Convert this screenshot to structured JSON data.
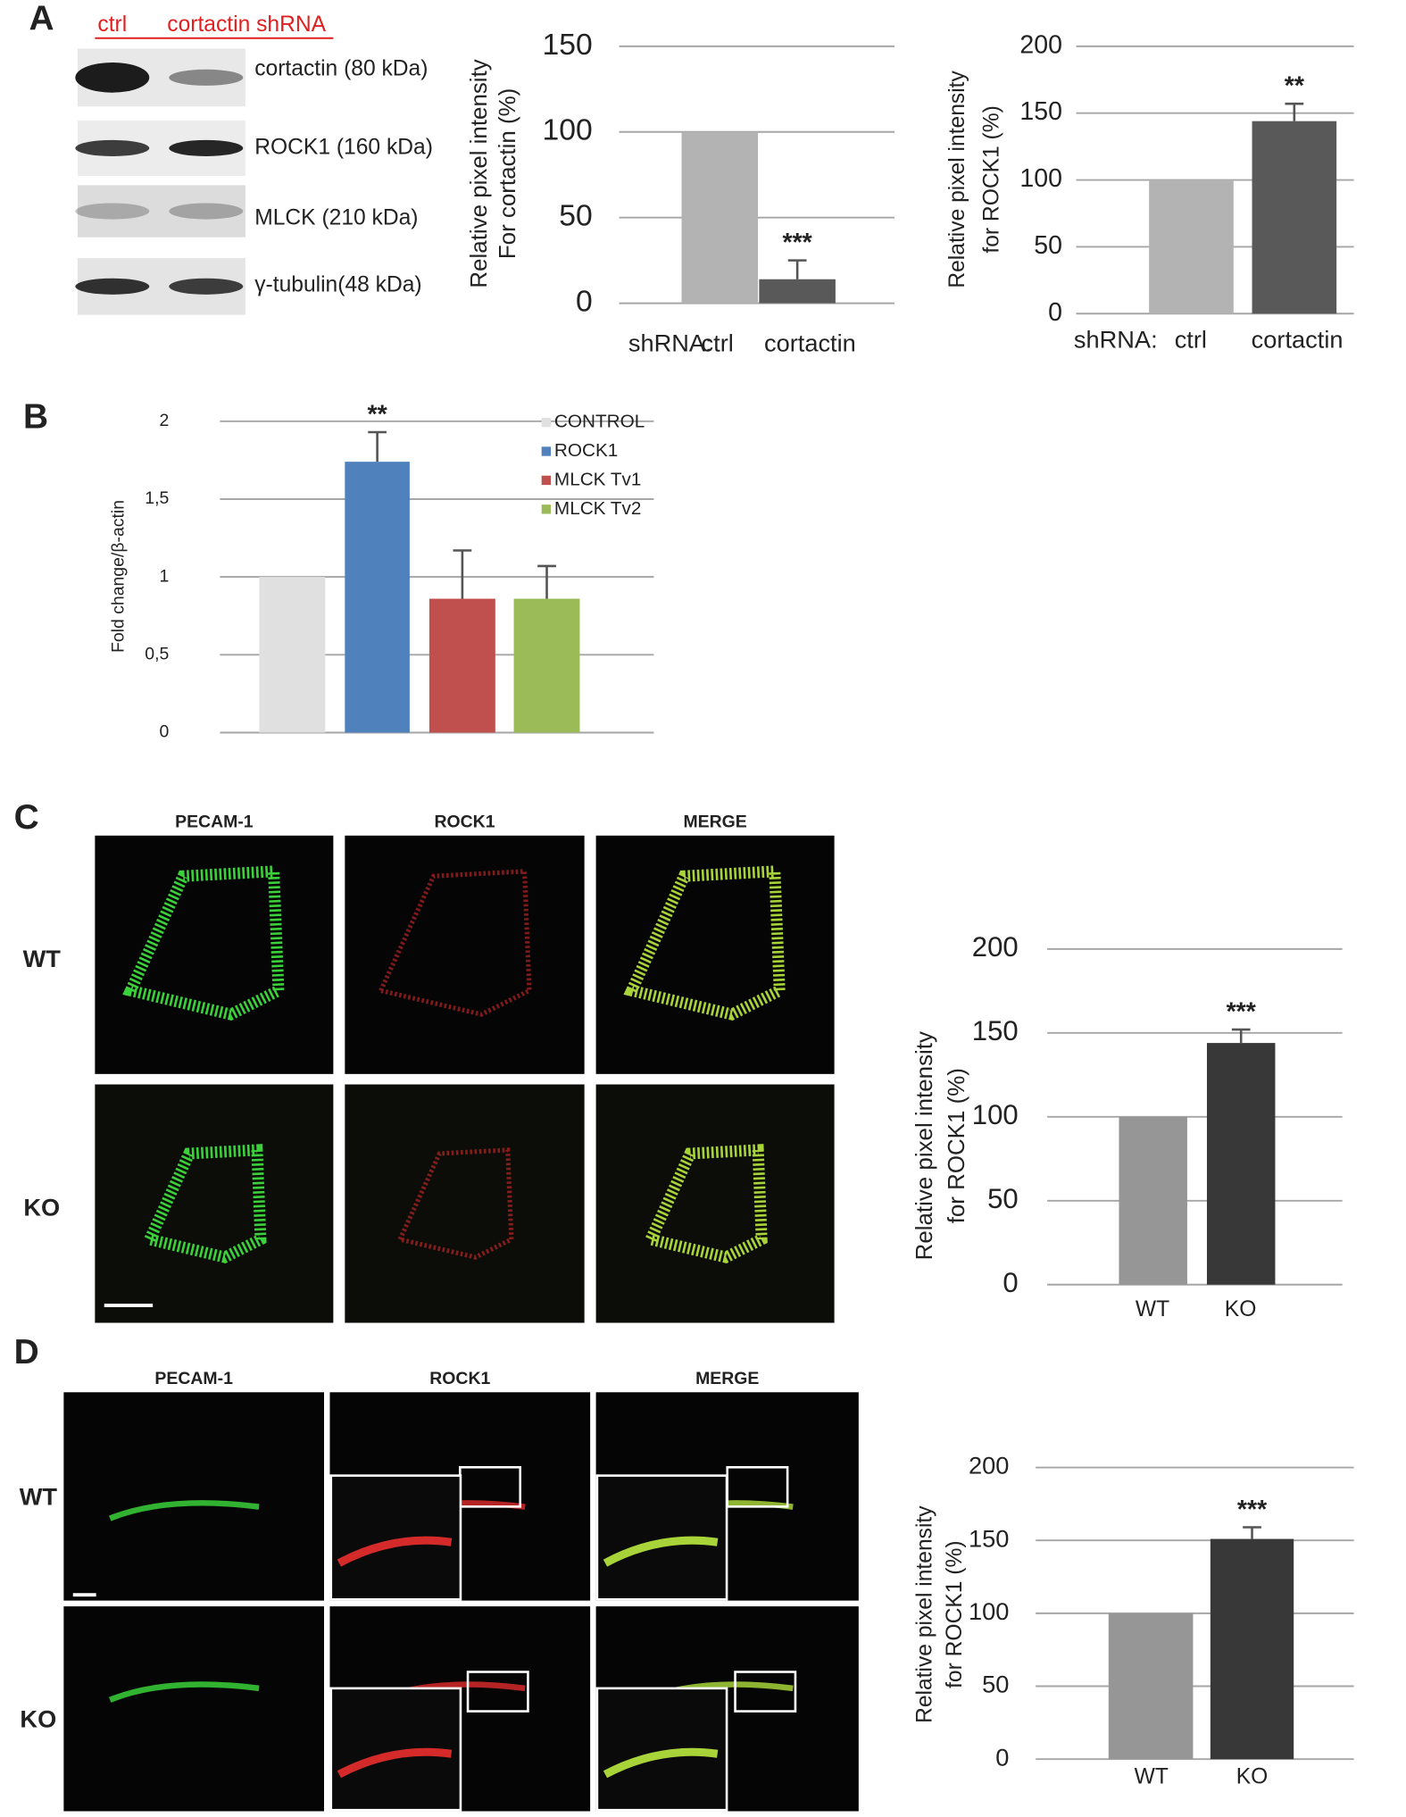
{
  "panel_labels": [
    "A",
    "B",
    "C",
    "D"
  ],
  "blot": {
    "lanes": [
      "ctrl",
      "cortactin shRNA"
    ],
    "bands": [
      "cortactin (80 kDa)",
      "ROCK1 (160 kDa)",
      "MLCK (210 kDa)",
      "γ-tubulin(48 kDa)"
    ]
  },
  "chart_data": [
    {
      "type": "bar",
      "y_label": [
        "Relative pixel intensity",
        "For  cortactin (%)"
      ],
      "x_label": "shRNA:",
      "categories": [
        "ctrl",
        "cortactin"
      ],
      "values": [
        100,
        14
      ],
      "errors": [
        null,
        11
      ],
      "annotations": [
        null,
        "***"
      ],
      "colors": [
        "#b3b3b3",
        "#595959"
      ],
      "ylim": [
        0,
        150
      ],
      "yticks": [
        0,
        50,
        100,
        150
      ],
      "grid": true
    },
    {
      "type": "bar",
      "y_label": [
        "Relative pixel intensity",
        "for ROCK1 (%)"
      ],
      "x_label": "shRNA:",
      "categories": [
        "ctrl",
        "cortactin"
      ],
      "values": [
        100,
        144
      ],
      "errors": [
        null,
        13
      ],
      "annotations": [
        null,
        "**"
      ],
      "colors": [
        "#b3b3b3",
        "#595959"
      ],
      "ylim": [
        0,
        200
      ],
      "yticks": [
        0,
        50,
        100,
        150,
        200
      ],
      "grid": true
    },
    {
      "type": "bar",
      "y_label": [
        "Fold change/β-actin"
      ],
      "series": [
        {
          "name": "CONTROL",
          "color": "#e0e0e0",
          "values": [
            1
          ],
          "errors": [
            null
          ],
          "annotations": [
            null
          ]
        },
        {
          "name": "ROCK1",
          "color": "#4f81bd",
          "values": [
            1.74
          ],
          "errors": [
            0.19
          ],
          "annotations": [
            "**"
          ]
        },
        {
          "name": "MLCK Tv1",
          "color": "#c0504d",
          "values": [
            0.86
          ],
          "errors": [
            0.31
          ],
          "annotations": [
            null
          ]
        },
        {
          "name": "MLCK Tv2",
          "color": "#9bbb59",
          "values": [
            0.86
          ],
          "errors": [
            0.21
          ],
          "annotations": [
            null
          ]
        }
      ],
      "ylim": [
        0,
        2
      ],
      "yticks": [
        0,
        {
          "value": 0.5,
          "label": "0,5"
        },
        1,
        {
          "value": 1.5,
          "label": "1,5"
        },
        2
      ],
      "grid": true,
      "legend": "right"
    },
    {
      "type": "bar",
      "y_label": [
        "Relative pixel intensity",
        "for ROCK1 (%)"
      ],
      "categories": [
        "WT",
        "KO"
      ],
      "values": [
        100,
        144
      ],
      "errors": [
        null,
        8
      ],
      "annotations": [
        null,
        "***"
      ],
      "colors": [
        "#969696",
        "#383838"
      ],
      "ylim": [
        0,
        200
      ],
      "yticks": [
        0,
        50,
        100,
        150,
        200
      ],
      "grid": true
    },
    {
      "type": "bar",
      "y_label": [
        "Relative pixel intensity",
        "for ROCK1 (%)"
      ],
      "categories": [
        "WT",
        "KO"
      ],
      "values": [
        100,
        151
      ],
      "errors": [
        null,
        8
      ],
      "annotations": [
        null,
        "***"
      ],
      "colors": [
        "#969696",
        "#383838"
      ],
      "ylim": [
        0,
        200
      ],
      "yticks": [
        0,
        50,
        100,
        150,
        200
      ],
      "grid": true
    }
  ],
  "micrographs": [
    {
      "columns": [
        "PECAM-1",
        "ROCK1",
        "MERGE"
      ],
      "rows": [
        "WT",
        "KO"
      ]
    },
    {
      "columns": [
        "PECAM-1",
        "ROCK1",
        "MERGE"
      ],
      "rows": [
        "WT",
        "KO"
      ]
    }
  ]
}
